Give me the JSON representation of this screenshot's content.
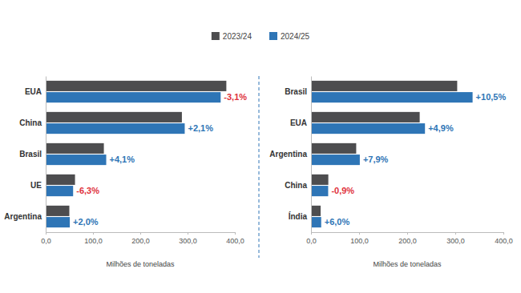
{
  "chart_data": [
    {
      "type": "bar",
      "orientation": "horizontal",
      "legend": "top",
      "grid": false,
      "categories": [
        "EUA",
        "China",
        "Brasil",
        "UE",
        "Argentina"
      ],
      "series": [
        {
          "name": "2023/24",
          "color": "#4d4d4f",
          "values": [
            382,
            288,
            123,
            62,
            50
          ]
        },
        {
          "name": "2024/25",
          "color": "#2e75b6",
          "values": [
            370,
            294,
            128,
            58,
            51
          ]
        }
      ],
      "changes": [
        {
          "value": -3.1,
          "label": "-3,1%"
        },
        {
          "value": 2.1,
          "label": "+2,1%"
        },
        {
          "value": 4.1,
          "label": "+4,1%"
        },
        {
          "value": -6.3,
          "label": "-6,3%"
        },
        {
          "value": 2.0,
          "label": "+2,0%"
        }
      ],
      "xlim": [
        0,
        400
      ],
      "xticks": [
        {
          "value": 0,
          "label": "0,0"
        },
        {
          "value": 100,
          "label": "100,0"
        },
        {
          "value": 200,
          "label": "200,0"
        },
        {
          "value": 300,
          "label": "300,0"
        },
        {
          "value": 400,
          "label": "400,0"
        }
      ],
      "x_label": "Milhões de toneladas"
    },
    {
      "type": "bar",
      "orientation": "horizontal",
      "grid": false,
      "categories": [
        "Brasil",
        "EUA",
        "Argentina",
        "China",
        "Índia"
      ],
      "series": [
        {
          "name": "2023/24",
          "color": "#4d4d4f",
          "values": [
            304,
            226,
            94,
            36,
            20
          ]
        },
        {
          "name": "2024/25",
          "color": "#2e75b6",
          "values": [
            336,
            237,
            101.5,
            35.7,
            21.2
          ]
        }
      ],
      "changes": [
        {
          "value": 10.5,
          "label": "+10,5%"
        },
        {
          "value": 4.9,
          "label": "+4,9%"
        },
        {
          "value": 7.9,
          "label": "+7,9%"
        },
        {
          "value": -0.9,
          "label": "-0,9%"
        },
        {
          "value": 6.0,
          "label": "+6,0%"
        }
      ],
      "xlim": [
        0,
        400
      ],
      "xticks": [
        {
          "value": 0,
          "label": "0,0"
        },
        {
          "value": 100,
          "label": "100,0"
        },
        {
          "value": 200,
          "label": "200,0"
        },
        {
          "value": 300,
          "label": "300,0"
        },
        {
          "value": 400,
          "label": "400,0"
        }
      ],
      "x_label": "Milhões de toneladas"
    }
  ]
}
